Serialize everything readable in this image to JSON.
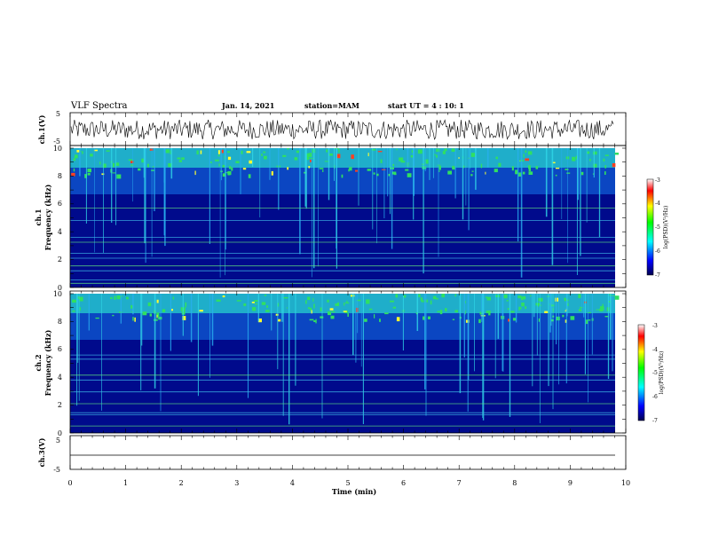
{
  "header": {
    "title": "VLF Spectra",
    "date": "Jan. 14, 2021",
    "station": "station=MAM",
    "start": "start UT =  4 : 10: 1"
  },
  "colors": {
    "spectrogram_background": "#000a8c",
    "trace": "#000000",
    "colormap": [
      "#ffffff",
      "#ff0000",
      "#ffff00",
      "#00ff00",
      "#00ffff",
      "#0000ff",
      "#000050"
    ]
  },
  "chart_data": [
    {
      "type": "line",
      "panel": "ch1-waveform",
      "ylabel": "ch.1(V)",
      "ylim": [
        -5,
        5
      ],
      "yticks": [
        "5",
        "-5"
      ],
      "xlim": [
        0,
        10
      ],
      "series": [
        {
          "description_amplitude_v": [
            -3,
            3
          ]
        }
      ]
    },
    {
      "type": "heatmap",
      "panel": "ch1-spectrogram",
      "ylabel_line1": "ch.1",
      "ylabel_line2": "Frequency (kHz)",
      "ylim": [
        0,
        10
      ],
      "yticks": [
        "0",
        "2",
        "4",
        "6",
        "8",
        "10"
      ],
      "xlim": [
        0,
        9.85
      ],
      "colorbar": {
        "label": "log(PSD)(V²/Hz)",
        "ticks": [
          "-3",
          "-4",
          "-5",
          "-6",
          "-7"
        ],
        "range": [
          -7,
          -3
        ]
      },
      "horizontal_lines_khz": [
        0.3,
        0.55,
        1.2,
        1.55,
        2.1,
        2.45,
        3.25,
        3.6,
        4.8,
        5.7
      ]
    },
    {
      "type": "heatmap",
      "panel": "ch2-spectrogram",
      "ylabel_line1": "ch.2",
      "ylabel_line2": "Frequency (kHz)",
      "ylim": [
        0,
        10
      ],
      "yticks": [
        "0",
        "2",
        "4",
        "6",
        "8",
        "10"
      ],
      "xlim": [
        0,
        9.85
      ],
      "colorbar": {
        "label": "log(PSD)(V²/Hz)",
        "ticks": [
          "-3",
          "-4",
          "-5",
          "-6",
          "-7"
        ],
        "range": [
          -7,
          -3
        ]
      },
      "horizontal_lines_khz": [
        0.5,
        1.3,
        1.45,
        2.1,
        2.95,
        3.8,
        4.15,
        5.3,
        5.6
      ]
    },
    {
      "type": "line",
      "panel": "ch3-waveform",
      "ylabel": "ch.3(V)",
      "ylim": [
        -5,
        5
      ],
      "yticks": [
        "5",
        "-5"
      ],
      "xlabel": "Time (min)",
      "xlim": [
        0,
        10
      ],
      "xticks": [
        "0",
        "1",
        "2",
        "3",
        "4",
        "5",
        "6",
        "7",
        "8",
        "9",
        "10"
      ],
      "series": [
        {
          "constant_v": -1
        }
      ]
    }
  ]
}
